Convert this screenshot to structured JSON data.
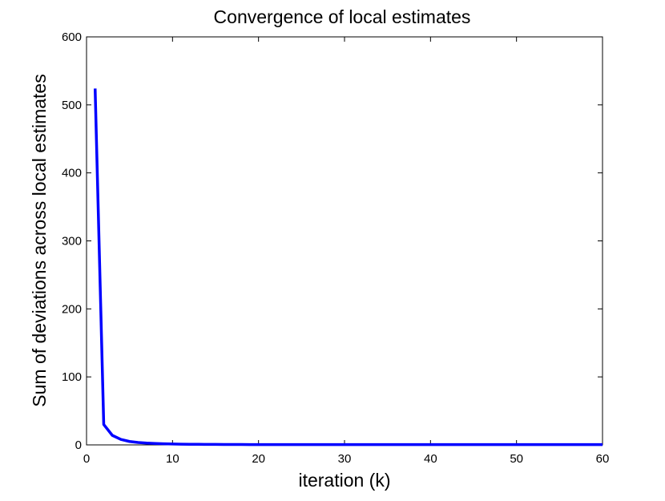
{
  "chart_data": {
    "type": "line",
    "title": "Convergence of local estimates",
    "xlabel": "iteration (k)",
    "ylabel": "Sum of deviations across local estimates",
    "xlim": [
      0,
      60
    ],
    "ylim": [
      0,
      600
    ],
    "xticks": [
      0,
      10,
      20,
      30,
      40,
      50,
      60
    ],
    "yticks": [
      0,
      100,
      200,
      300,
      400,
      500,
      600
    ],
    "grid": false,
    "series": [
      {
        "color": "#0000ff",
        "x": [
          1,
          2,
          3,
          4,
          5,
          6,
          7,
          8,
          9,
          10,
          11,
          12,
          13,
          14,
          15,
          16,
          17,
          18,
          19,
          20,
          21,
          22,
          23,
          24,
          25,
          26,
          27,
          28,
          29,
          30,
          31,
          32,
          33,
          34,
          35,
          36,
          37,
          38,
          39,
          40,
          41,
          42,
          43,
          44,
          45,
          46,
          47,
          48,
          49,
          50,
          51,
          52,
          53,
          54,
          55,
          56,
          57,
          58,
          59,
          60
        ],
        "y": [
          524,
          30,
          14,
          8,
          5,
          3.5,
          2.6,
          2,
          1.6,
          1.3,
          1.1,
          0.95,
          0.85,
          0.75,
          0.7,
          0.65,
          0.6,
          0.55,
          0.5,
          0.5,
          0.5,
          0.5,
          0.5,
          0.5,
          0.5,
          0.5,
          0.5,
          0.5,
          0.5,
          0.5,
          0.5,
          0.5,
          0.5,
          0.5,
          0.5,
          0.5,
          0.5,
          0.5,
          0.5,
          0.5,
          0.5,
          0.5,
          0.5,
          0.5,
          0.5,
          0.5,
          0.5,
          0.5,
          0.5,
          0.5,
          0.5,
          0.5,
          0.5,
          0.5,
          0.5,
          0.5,
          0.5,
          0.5,
          0.5,
          0.5
        ]
      }
    ]
  }
}
